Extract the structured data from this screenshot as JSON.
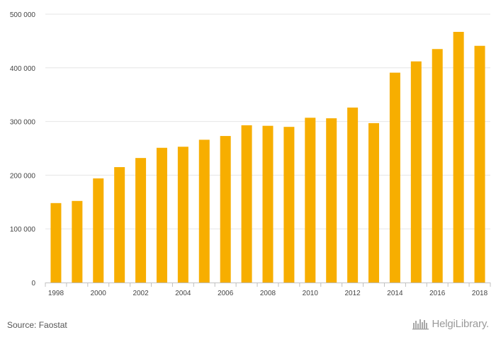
{
  "chart_data": {
    "type": "bar",
    "categories": [
      "1998",
      "1999",
      "2000",
      "2001",
      "2002",
      "2003",
      "2004",
      "2005",
      "2006",
      "2007",
      "2008",
      "2009",
      "2010",
      "2011",
      "2012",
      "2013",
      "2014",
      "2015",
      "2016",
      "2017",
      "2018"
    ],
    "values": [
      148000,
      152000,
      194000,
      215000,
      232000,
      251000,
      253000,
      266000,
      273000,
      293000,
      292000,
      290000,
      307000,
      306000,
      326000,
      297000,
      391000,
      412000,
      435000,
      467000,
      441000
    ],
    "x_tick_labels": [
      "1998",
      "2000",
      "2002",
      "2004",
      "2006",
      "2008",
      "2010",
      "2012",
      "2014",
      "2016",
      "2018"
    ],
    "y_ticks": [
      0,
      100000,
      200000,
      300000,
      400000,
      500000
    ],
    "y_tick_labels": [
      "0",
      "100 000",
      "200 000",
      "300 000",
      "400 000",
      "500 000"
    ],
    "ylim": [
      0,
      500000
    ],
    "grid": true,
    "title": "",
    "xlabel": "",
    "ylabel": "",
    "bar_color": "#F7AE00",
    "grid_color": "#E6E6E6",
    "axis_color": "#C0C0C0"
  },
  "footer": {
    "source": "Source: Faostat",
    "brand": "HelgiLibrary.",
    "brand_icon": "library-skyline-icon"
  }
}
